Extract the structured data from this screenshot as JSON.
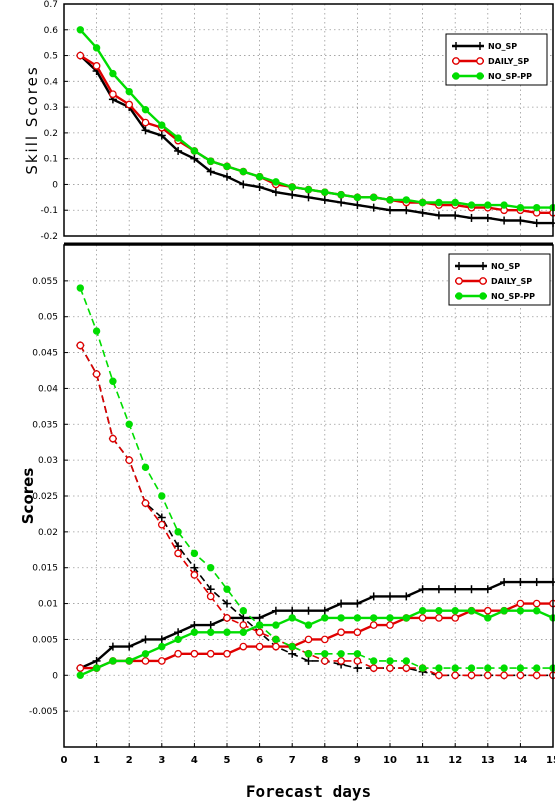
{
  "chart_data": [
    {
      "type": "line",
      "ylabel": "Skill Scores",
      "xlabel": "",
      "ylim": [
        -0.2,
        0.7
      ],
      "xlim": [
        0,
        15
      ],
      "yticks": [
        "0.7",
        "0.6",
        "0.5",
        "0.4",
        "0.3",
        "0.2",
        "0.1",
        "0",
        "-0.1",
        "-0.2"
      ],
      "grid": true,
      "legend_position": "top-right",
      "x": [
        0.5,
        1,
        1.5,
        2,
        2.5,
        3,
        3.5,
        4,
        4.5,
        5,
        5.5,
        6,
        6.5,
        7,
        7.5,
        8,
        8.5,
        9,
        9.5,
        10,
        10.5,
        11,
        11.5,
        12,
        12.5,
        13,
        13.5,
        14,
        14.5,
        15
      ],
      "series": [
        {
          "name": "NO_SP",
          "color": "#000000",
          "marker": "plus",
          "values": [
            0.5,
            0.44,
            0.33,
            0.3,
            0.21,
            0.19,
            0.13,
            0.1,
            0.05,
            0.03,
            0.0,
            -0.01,
            -0.03,
            -0.04,
            -0.05,
            -0.06,
            -0.07,
            -0.08,
            -0.09,
            -0.1,
            -0.1,
            -0.11,
            -0.12,
            -0.12,
            -0.13,
            -0.13,
            -0.14,
            -0.14,
            -0.15,
            -0.15
          ]
        },
        {
          "name": "DAILY_SP",
          "color": "#e00000",
          "marker": "circle-open",
          "values": [
            0.5,
            0.46,
            0.35,
            0.31,
            0.24,
            0.22,
            0.17,
            0.13,
            0.09,
            0.07,
            0.05,
            0.03,
            0.0,
            -0.01,
            -0.02,
            -0.03,
            -0.04,
            -0.05,
            -0.05,
            -0.06,
            -0.07,
            -0.07,
            -0.08,
            -0.08,
            -0.09,
            -0.09,
            -0.1,
            -0.1,
            -0.11,
            -0.11
          ]
        },
        {
          "name": "NO_SP-PP",
          "color": "#00dd00",
          "marker": "circle-filled",
          "values": [
            0.6,
            0.53,
            0.43,
            0.36,
            0.29,
            0.23,
            0.18,
            0.13,
            0.09,
            0.07,
            0.05,
            0.03,
            0.01,
            -0.01,
            -0.02,
            -0.03,
            -0.04,
            -0.05,
            -0.05,
            -0.06,
            -0.06,
            -0.07,
            -0.07,
            -0.07,
            -0.08,
            -0.08,
            -0.08,
            -0.09,
            -0.09,
            -0.09
          ]
        }
      ]
    },
    {
      "type": "line",
      "ylabel": "Scores",
      "xlabel": "Forecast days",
      "ylim": [
        -0.01,
        0.06
      ],
      "xlim": [
        0,
        15
      ],
      "yticks": [
        "0.055",
        "0.05",
        "0.045",
        "0.04",
        "0.035",
        "0.03",
        "0.025",
        "0.02",
        "0.015",
        "0.01",
        "0.005",
        "0",
        "-0.005"
      ],
      "xticks": [
        "0",
        "1",
        "2",
        "3",
        "4",
        "5",
        "6",
        "7",
        "8",
        "9",
        "10",
        "11",
        "12",
        "13",
        "14",
        "15"
      ],
      "grid": true,
      "legend_position": "top-right",
      "x": [
        0.5,
        1,
        1.5,
        2,
        2.5,
        3,
        3.5,
        4,
        4.5,
        5,
        5.5,
        6,
        6.5,
        7,
        7.5,
        8,
        8.5,
        9,
        9.5,
        10,
        10.5,
        11,
        11.5,
        12,
        12.5,
        13,
        13.5,
        14,
        14.5,
        15
      ],
      "series": [
        {
          "name": "NO_SP",
          "color": "#000000",
          "marker": "plus",
          "values": [
            0.001,
            0.002,
            0.004,
            0.004,
            0.005,
            0.005,
            0.006,
            0.007,
            0.007,
            0.008,
            0.008,
            0.008,
            0.009,
            0.009,
            0.009,
            0.009,
            0.01,
            0.01,
            0.011,
            0.011,
            0.011,
            0.012,
            0.012,
            0.012,
            0.012,
            0.012,
            0.013,
            0.013,
            0.013,
            0.013
          ]
        },
        {
          "name": "NO_SP",
          "color": "#000000",
          "marker": "plus",
          "dashed": true,
          "values": [
            0.046,
            0.042,
            0.033,
            0.03,
            0.024,
            0.022,
            0.018,
            0.015,
            0.012,
            0.01,
            0.008,
            0.006,
            0.004,
            0.003,
            0.002,
            0.002,
            0.0015,
            0.001,
            0.001,
            0.001,
            0.001,
            0.0005,
            0.0,
            0.0,
            0.0,
            0.0,
            0.0,
            0.0,
            0.0,
            0.0
          ]
        },
        {
          "name": "DAILY_SP",
          "color": "#e00000",
          "marker": "circle-open",
          "values": [
            0.001,
            0.001,
            0.002,
            0.002,
            0.002,
            0.002,
            0.003,
            0.003,
            0.003,
            0.003,
            0.004,
            0.004,
            0.004,
            0.004,
            0.005,
            0.005,
            0.006,
            0.006,
            0.007,
            0.007,
            0.008,
            0.008,
            0.008,
            0.008,
            0.009,
            0.009,
            0.009,
            0.01,
            0.01,
            0.01
          ]
        },
        {
          "name": "DAILY_SP",
          "color": "#e00000",
          "marker": "circle-open",
          "dashed": true,
          "values": [
            0.046,
            0.042,
            0.033,
            0.03,
            0.024,
            0.021,
            0.017,
            0.014,
            0.011,
            0.008,
            0.007,
            0.006,
            0.005,
            0.004,
            0.003,
            0.002,
            0.002,
            0.002,
            0.001,
            0.001,
            0.001,
            0.001,
            0.0,
            0.0,
            0.0,
            0.0,
            0.0,
            0.0,
            0.0,
            0.0
          ]
        },
        {
          "name": "NO_SP-PP",
          "color": "#00dd00",
          "marker": "circle-filled",
          "values": [
            0.0,
            0.001,
            0.002,
            0.002,
            0.003,
            0.004,
            0.005,
            0.006,
            0.006,
            0.006,
            0.006,
            0.007,
            0.007,
            0.008,
            0.007,
            0.008,
            0.008,
            0.008,
            0.008,
            0.008,
            0.008,
            0.009,
            0.009,
            0.009,
            0.009,
            0.008,
            0.009,
            0.009,
            0.009,
            0.008
          ]
        },
        {
          "name": "NO_SP-PP",
          "color": "#00dd00",
          "marker": "circle-filled",
          "dashed": true,
          "values": [
            0.054,
            0.048,
            0.041,
            0.035,
            0.029,
            0.025,
            0.02,
            0.017,
            0.015,
            0.012,
            0.009,
            0.007,
            0.005,
            0.004,
            0.003,
            0.003,
            0.003,
            0.003,
            0.002,
            0.002,
            0.002,
            0.001,
            0.001,
            0.001,
            0.001,
            0.001,
            0.001,
            0.001,
            0.001,
            0.001
          ]
        }
      ]
    }
  ]
}
